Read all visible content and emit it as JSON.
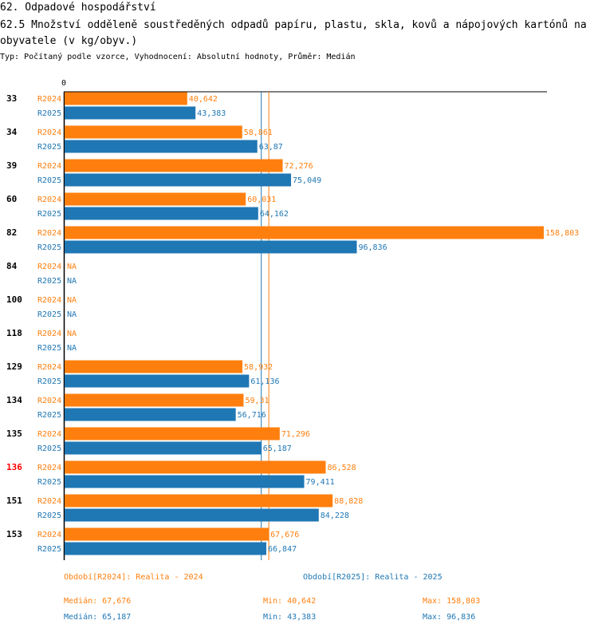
{
  "header": {
    "section": "62. Odpadové hospodářství",
    "title": "62.5 Množství odděleně soustředěných odpadů papíru, plastu, skla, kovů a nápojových kartónů na obyvatele (v kg/obyv.)",
    "subtitle": "Typ: Počítaný podle vzorce, Vyhodnocení: Absolutní hodnoty, Průměr: Medián"
  },
  "colors": {
    "r2024": "#ff7f0e",
    "r2025": "#1f77b4",
    "highlight": "#ff0000"
  },
  "chart_data": {
    "type": "bar",
    "orientation": "horizontal",
    "axis_zero_label": "0",
    "categories": [
      "33",
      "34",
      "39",
      "60",
      "82",
      "84",
      "100",
      "118",
      "129",
      "134",
      "135",
      "136",
      "151",
      "153"
    ],
    "highlighted_category": "136",
    "series": [
      {
        "name": "R2024",
        "values": [
          40.642,
          58.861,
          72.276,
          60.031,
          158.803,
          null,
          null,
          null,
          58.932,
          59.31,
          71.296,
          86.528,
          88.828,
          67.676
        ],
        "labels": [
          "40,642",
          "58,861",
          "72,276",
          "60,031",
          "158,803",
          "NA",
          "NA",
          "NA",
          "58,932",
          "59,31",
          "71,296",
          "86,528",
          "88,828",
          "67,676"
        ]
      },
      {
        "name": "R2025",
        "values": [
          43.383,
          63.87,
          75.049,
          64.162,
          96.836,
          null,
          null,
          null,
          61.136,
          56.716,
          65.187,
          79.411,
          84.228,
          66.847
        ],
        "labels": [
          "43,383",
          "63,87",
          "75,049",
          "64,162",
          "96,836",
          "NA",
          "NA",
          "NA",
          "61,136",
          "56,716",
          "65,187",
          "79,411",
          "84,228",
          "66,847"
        ]
      }
    ],
    "median_lines": [
      {
        "series": "R2024",
        "value": 67.676
      },
      {
        "series": "R2025",
        "value": 65.187
      }
    ],
    "xlim": [
      0,
      158.803
    ]
  },
  "legend": {
    "r2024": "Období[R2024]: Realita - 2024",
    "r2025": "Období[R2025]: Realita - 2025"
  },
  "stats": {
    "r2024": {
      "median": "Medián: 67,676",
      "min": "Min: 40,642",
      "max": "Max: 158,803"
    },
    "r2025": {
      "median": "Medián: 65,187",
      "min": "Min: 43,383",
      "max": "Max: 96,836"
    }
  }
}
